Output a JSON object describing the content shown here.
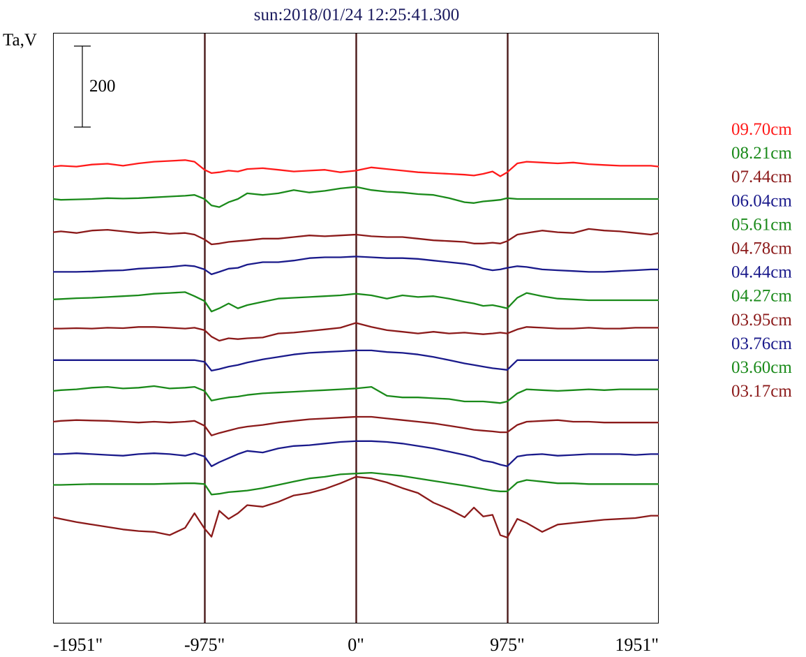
{
  "chart_data": {
    "type": "line",
    "title": "sun:2018/01/24 12:25:41.300",
    "ylabel": "Ta,V",
    "scale_bar_label": "200",
    "scale_bar_value": 200,
    "xlim": [
      -1951,
      1951
    ],
    "x_ticks": [
      {
        "value": -1951,
        "label": "-1951\""
      },
      {
        "value": -975,
        "label": "-975\""
      },
      {
        "value": 0,
        "label": "0\""
      },
      {
        "value": 975,
        "label": "975\""
      },
      {
        "value": 1951,
        "label": "1951\""
      }
    ],
    "limb_markers": [
      -975,
      0,
      975
    ],
    "marker_color": "#4a1a1a",
    "grid": false,
    "legend_placement": "right",
    "series_x": [
      -1951,
      -1900,
      -1800,
      -1700,
      -1600,
      -1500,
      -1400,
      -1300,
      -1200,
      -1100,
      -1040,
      -975,
      -930,
      -880,
      -820,
      -760,
      -700,
      -600,
      -500,
      -400,
      -300,
      -200,
      -100,
      0,
      100,
      200,
      300,
      400,
      500,
      600,
      700,
      760,
      820,
      880,
      930,
      975,
      1040,
      1100,
      1200,
      1300,
      1400,
      1500,
      1600,
      1700,
      1800,
      1900,
      1951
    ],
    "series": [
      {
        "name": "09.70cm",
        "color": "#ff1a1a",
        "values": [
          730,
          732,
          730,
          735,
          737,
          732,
          738,
          742,
          744,
          746,
          742,
          722,
          714,
          716,
          720,
          718,
          724,
          726,
          722,
          718,
          720,
          722,
          716,
          720,
          728,
          724,
          720,
          716,
          714,
          712,
          710,
          708,
          712,
          718,
          706,
          716,
          738,
          742,
          740,
          738,
          740,
          736,
          734,
          732,
          732,
          732,
          730
        ]
      },
      {
        "name": "08.21cm",
        "color": "#1a8a1a",
        "values": [
          650,
          648,
          649,
          650,
          652,
          651,
          652,
          654,
          656,
          658,
          660,
          650,
          634,
          630,
          642,
          650,
          664,
          660,
          664,
          672,
          666,
          670,
          676,
          680,
          672,
          668,
          666,
          662,
          660,
          652,
          642,
          640,
          644,
          646,
          648,
          652,
          650,
          650,
          650,
          650,
          650,
          650,
          650,
          650,
          650,
          650,
          650
        ]
      },
      {
        "name": "07.44cm",
        "color": "#8b1a1a",
        "values": [
          568,
          570,
          566,
          572,
          574,
          570,
          566,
          568,
          564,
          566,
          562,
          550,
          538,
          540,
          544,
          546,
          548,
          552,
          552,
          556,
          560,
          558,
          560,
          562,
          558,
          556,
          556,
          552,
          548,
          546,
          544,
          540,
          540,
          542,
          540,
          546,
          562,
          566,
          572,
          568,
          566,
          576,
          572,
          570,
          566,
          562,
          566
        ]
      },
      {
        "name": "06.04cm",
        "color": "#1a1a8b",
        "values": [
          470,
          470,
          470,
          471,
          473,
          474,
          478,
          480,
          482,
          486,
          484,
          476,
          464,
          470,
          478,
          480,
          488,
          494,
          494,
          498,
          504,
          506,
          506,
          508,
          506,
          504,
          504,
          502,
          498,
          494,
          490,
          486,
          478,
          474,
          476,
          480,
          484,
          482,
          476,
          474,
          472,
          470,
          470,
          472,
          474,
          476,
          476
        ]
      },
      {
        "name": "05.61cm",
        "color": "#1a8a1a",
        "values": [
          402,
          403,
          405,
          406,
          408,
          410,
          412,
          416,
          418,
          420,
          410,
          398,
          372,
          380,
          392,
          380,
          388,
          396,
          404,
          406,
          408,
          410,
          412,
          416,
          412,
          404,
          412,
          408,
          410,
          404,
          396,
          392,
          386,
          388,
          384,
          380,
          406,
          418,
          410,
          404,
          402,
          400,
          400,
          400,
          400,
          400,
          400
        ]
      },
      {
        "name": "04.78cm",
        "color": "#8b1a1a",
        "values": [
          330,
          330,
          331,
          330,
          332,
          331,
          334,
          334,
          332,
          330,
          332,
          326,
          310,
          300,
          306,
          304,
          306,
          308,
          318,
          320,
          324,
          328,
          332,
          344,
          334,
          326,
          322,
          318,
          322,
          318,
          320,
          318,
          316,
          318,
          320,
          318,
          328,
          334,
          332,
          330,
          330,
          332,
          330,
          330,
          332,
          332,
          332
        ]
      },
      {
        "name": "04.44cm",
        "color": "#1a1a8b",
        "values": [
          252,
          252,
          252,
          252,
          252,
          252,
          252,
          252,
          252,
          252,
          252,
          248,
          226,
          230,
          236,
          240,
          246,
          254,
          260,
          266,
          270,
          272,
          274,
          276,
          276,
          272,
          270,
          266,
          260,
          252,
          244,
          240,
          236,
          232,
          230,
          228,
          252,
          252,
          252,
          252,
          252,
          252,
          252,
          252,
          252,
          252,
          252
        ]
      },
      {
        "name": "04.27cm",
        "color": "#1a8a1a",
        "values": [
          176,
          178,
          180,
          184,
          186,
          182,
          184,
          188,
          182,
          184,
          186,
          176,
          152,
          156,
          160,
          162,
          166,
          170,
          172,
          174,
          176,
          178,
          180,
          182,
          186,
          164,
          160,
          160,
          158,
          156,
          150,
          150,
          150,
          148,
          146,
          150,
          170,
          180,
          178,
          176,
          178,
          180,
          178,
          180,
          180,
          180,
          180
        ]
      },
      {
        "name": "03.95cm",
        "color": "#8b1a1a",
        "values": [
          100,
          102,
          104,
          103,
          102,
          100,
          98,
          100,
          98,
          100,
          102,
          90,
          66,
          72,
          78,
          84,
          88,
          92,
          98,
          102,
          106,
          108,
          110,
          112,
          112,
          108,
          104,
          100,
          96,
          90,
          84,
          80,
          78,
          76,
          74,
          74,
          92,
          100,
          102,
          104,
          100,
          100,
          98,
          98,
          98,
          98,
          98
        ]
      },
      {
        "name": "03.76cm",
        "color": "#1a1a8b",
        "values": [
          20,
          20,
          22,
          20,
          18,
          16,
          20,
          22,
          20,
          16,
          22,
          14,
          -10,
          0,
          10,
          20,
          28,
          24,
          34,
          40,
          42,
          46,
          50,
          52,
          52,
          50,
          46,
          40,
          34,
          26,
          18,
          12,
          4,
          0,
          -6,
          -10,
          14,
          18,
          20,
          16,
          18,
          20,
          20,
          20,
          18,
          20,
          20
        ]
      },
      {
        "name": "03.60cm",
        "color": "#1a8a1a",
        "values": [
          -56,
          -56,
          -55,
          -54,
          -54,
          -54,
          -54,
          -54,
          -53,
          -52,
          -52,
          -54,
          -80,
          -78,
          -74,
          -72,
          -70,
          -64,
          -56,
          -48,
          -40,
          -36,
          -30,
          -28,
          -26,
          -30,
          -34,
          -40,
          -46,
          -52,
          -58,
          -62,
          -66,
          -70,
          -72,
          -72,
          -50,
          -44,
          -48,
          -52,
          -52,
          -54,
          -54,
          -54,
          -54,
          -54,
          -54
        ]
      },
      {
        "name": "03.17cm",
        "color": "#8b1a1a",
        "values": [
          -136,
          -140,
          -148,
          -154,
          -160,
          -166,
          -170,
          -172,
          -180,
          -162,
          -126,
          -164,
          -184,
          -120,
          -140,
          -126,
          -106,
          -110,
          -98,
          -82,
          -76,
          -66,
          -52,
          -36,
          -40,
          -50,
          -64,
          -76,
          -100,
          -116,
          -136,
          -112,
          -134,
          -130,
          -180,
          -186,
          -140,
          -150,
          -172,
          -154,
          -150,
          -146,
          -142,
          -140,
          -138,
          -132,
          -132
        ]
      }
    ]
  }
}
